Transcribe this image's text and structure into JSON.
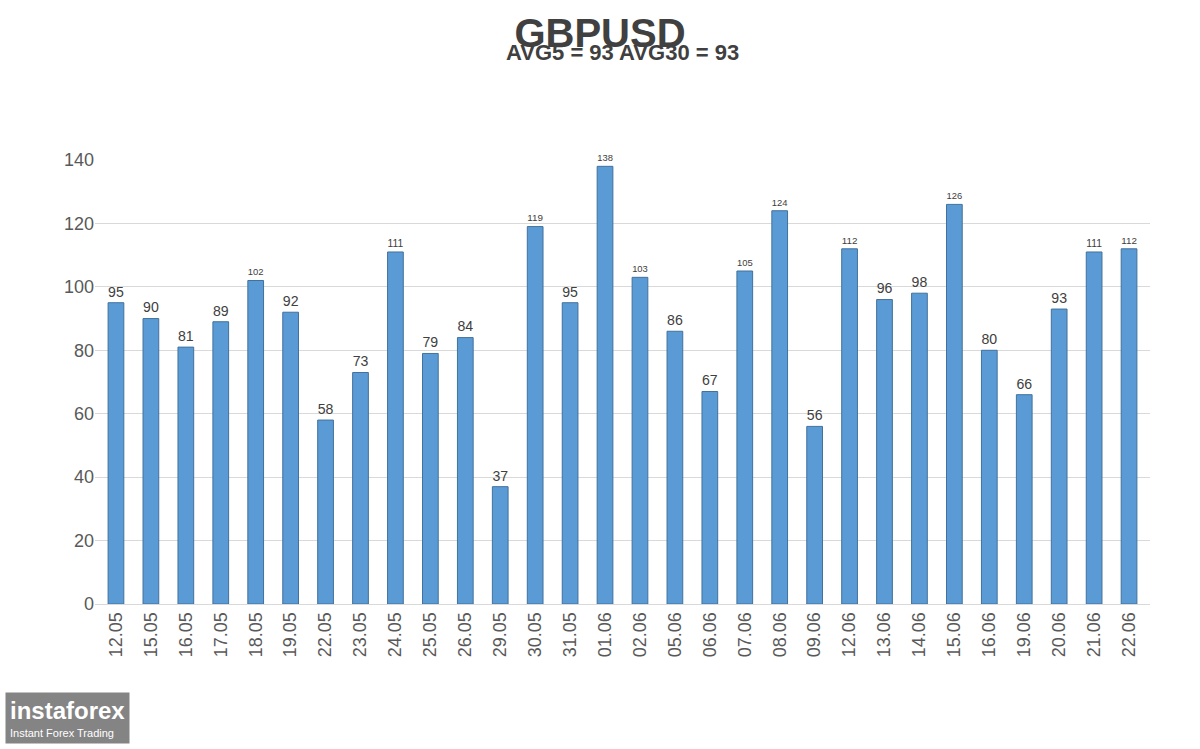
{
  "chart_data": {
    "type": "bar",
    "title": "GBPUSD",
    "subtitle": "AVG5 = 93 AVG30 = 93",
    "categories": [
      "12.05",
      "15.05",
      "16.05",
      "17.05",
      "18.05",
      "19.05",
      "22.05",
      "23.05",
      "24.05",
      "25.05",
      "26.05",
      "29.05",
      "30.05",
      "31.05",
      "01.06",
      "02.06",
      "05.06",
      "06.06",
      "07.06",
      "08.06",
      "09.06",
      "12.06",
      "13.06",
      "14.06",
      "15.06",
      "16.06",
      "19.06",
      "20.06",
      "21.06",
      "22.06"
    ],
    "values": [
      95,
      90,
      81,
      89,
      102,
      92,
      58,
      73,
      111,
      79,
      84,
      37,
      119,
      95,
      138,
      103,
      86,
      67,
      105,
      124,
      56,
      112,
      96,
      98,
      126,
      80,
      66,
      93,
      111,
      112
    ],
    "color": "#5b9bd5",
    "ylim": [
      0,
      140
    ],
    "yticks": [
      0,
      20,
      40,
      60,
      80,
      100,
      120,
      140
    ],
    "grid": true,
    "data_labels": true,
    "annotations": [
      "instaforex",
      "Instant Forex Trading"
    ]
  }
}
